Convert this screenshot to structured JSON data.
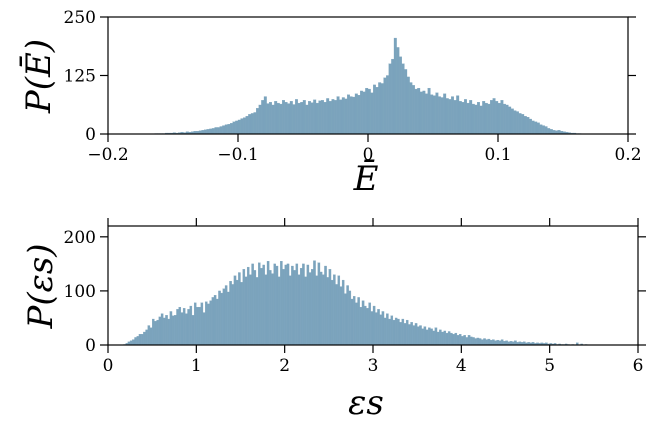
{
  "chart_data": [
    {
      "type": "bar",
      "title": "",
      "xlabel": "Ē",
      "ylabel": "P(Ē)",
      "xlim": [
        -0.2,
        0.2
      ],
      "ylim": [
        0,
        250
      ],
      "xticks": [
        "−0.2",
        "−0.1",
        "0",
        "0.1",
        "0.2"
      ],
      "xtick_values": [
        -0.2,
        -0.1,
        0,
        0.1,
        0.2
      ],
      "yticks": [
        "0",
        "125",
        "250"
      ],
      "ytick_values": [
        0,
        125,
        250
      ],
      "grid": false,
      "color": "#7ba3bc",
      "bin_start": -0.2,
      "bin_width": 0.002,
      "values": [
        0,
        0,
        0,
        0,
        0,
        0,
        0,
        0,
        0,
        0,
        0,
        0,
        0,
        0,
        0,
        0,
        0,
        0,
        1,
        1,
        1,
        1,
        2,
        2,
        2,
        3,
        2,
        3,
        4,
        3,
        5,
        4,
        5,
        6,
        6,
        7,
        8,
        9,
        10,
        11,
        12,
        14,
        14,
        16,
        18,
        20,
        21,
        23,
        26,
        28,
        30,
        33,
        35,
        38,
        42,
        44,
        46,
        55,
        62,
        72,
        80,
        65,
        68,
        62,
        70,
        66,
        64,
        72,
        68,
        65,
        70,
        63,
        74,
        66,
        68,
        72,
        62,
        70,
        67,
        73,
        66,
        71,
        72,
        68,
        76,
        70,
        74,
        72,
        80,
        73,
        78,
        75,
        84,
        80,
        79,
        86,
        83,
        92,
        90,
        98,
        96,
        88,
        105,
        100,
        110,
        108,
        120,
        125,
        150,
        160,
        205,
        185,
        165,
        150,
        138,
        122,
        110,
        104,
        96,
        98,
        90,
        92,
        86,
        98,
        84,
        82,
        88,
        80,
        78,
        86,
        76,
        74,
        80,
        72,
        82,
        70,
        68,
        74,
        66,
        72,
        64,
        62,
        68,
        60,
        70,
        66,
        64,
        72,
        76,
        70,
        66,
        72,
        64,
        62,
        58,
        54,
        50,
        48,
        44,
        42,
        38,
        36,
        32,
        28,
        26,
        24,
        20,
        18,
        16,
        12,
        10,
        8,
        7,
        8,
        6,
        5,
        4,
        3,
        2,
        2,
        1,
        1,
        0,
        0,
        0,
        0,
        0,
        0,
        0,
        0,
        0,
        0,
        0,
        0,
        0,
        0,
        0,
        0,
        0,
        0,
        0
      ]
    },
    {
      "type": "bar",
      "title": "",
      "xlabel": "εs",
      "ylabel": "P(εs)",
      "xlim": [
        0,
        6
      ],
      "ylim": [
        0,
        220
      ],
      "xticks": [
        "0",
        "1",
        "2",
        "3",
        "4",
        "5",
        "6"
      ],
      "xtick_values": [
        0,
        1,
        2,
        3,
        4,
        5,
        6
      ],
      "yticks": [
        "0",
        "100",
        "200"
      ],
      "ytick_values": [
        0,
        100,
        200
      ],
      "grid": false,
      "color": "#7ba3bc",
      "bin_start": 0,
      "bin_width": 0.025,
      "values": [
        0,
        0,
        0,
        0,
        0,
        0,
        0,
        1,
        3,
        6,
        8,
        10,
        14,
        16,
        20,
        20,
        24,
        28,
        36,
        32,
        48,
        44,
        46,
        52,
        58,
        50,
        55,
        48,
        62,
        54,
        55,
        66,
        70,
        60,
        68,
        58,
        66,
        72,
        55,
        78,
        70,
        70,
        78,
        60,
        80,
        76,
        82,
        88,
        92,
        85,
        100,
        96,
        104,
        110,
        98,
        118,
        112,
        128,
        120,
        134,
        116,
        140,
        126,
        144,
        130,
        150,
        138,
        125,
        152,
        142,
        148,
        130,
        155,
        138,
        132,
        150,
        146,
        126,
        155,
        140,
        148,
        150,
        128,
        146,
        138,
        150,
        130,
        142,
        150,
        126,
        148,
        134,
        140,
        156,
        128,
        152,
        135,
        130,
        146,
        125,
        140,
        120,
        130,
        112,
        128,
        108,
        120,
        95,
        110,
        100,
        85,
        90,
        78,
        88,
        70,
        82,
        72,
        68,
        78,
        62,
        72,
        60,
        66,
        56,
        62,
        50,
        58,
        48,
        54,
        46,
        50,
        48,
        42,
        48,
        40,
        46,
        38,
        42,
        36,
        40,
        34,
        36,
        30,
        34,
        28,
        32,
        30,
        26,
        32,
        24,
        28,
        24,
        26,
        22,
        25,
        22,
        20,
        22,
        18,
        20,
        16,
        18,
        14,
        18,
        15,
        14,
        12,
        13,
        12,
        10,
        12,
        10,
        11,
        9,
        10,
        8,
        9,
        8,
        10,
        7,
        8,
        6,
        7,
        6,
        8,
        5,
        6,
        5,
        6,
        4,
        5,
        4,
        5,
        3,
        4,
        3,
        4,
        3,
        4,
        2,
        3,
        2,
        3,
        1,
        2,
        1,
        1,
        2,
        1,
        0,
        1,
        0,
        4,
        0,
        2,
        0,
        1,
        0,
        0,
        0,
        0,
        0,
        0,
        0,
        0,
        0,
        0,
        0,
        0,
        0,
        0,
        0,
        0,
        0,
        0,
        0,
        0,
        0,
        0,
        0,
        0,
        0,
        0
      ]
    }
  ]
}
